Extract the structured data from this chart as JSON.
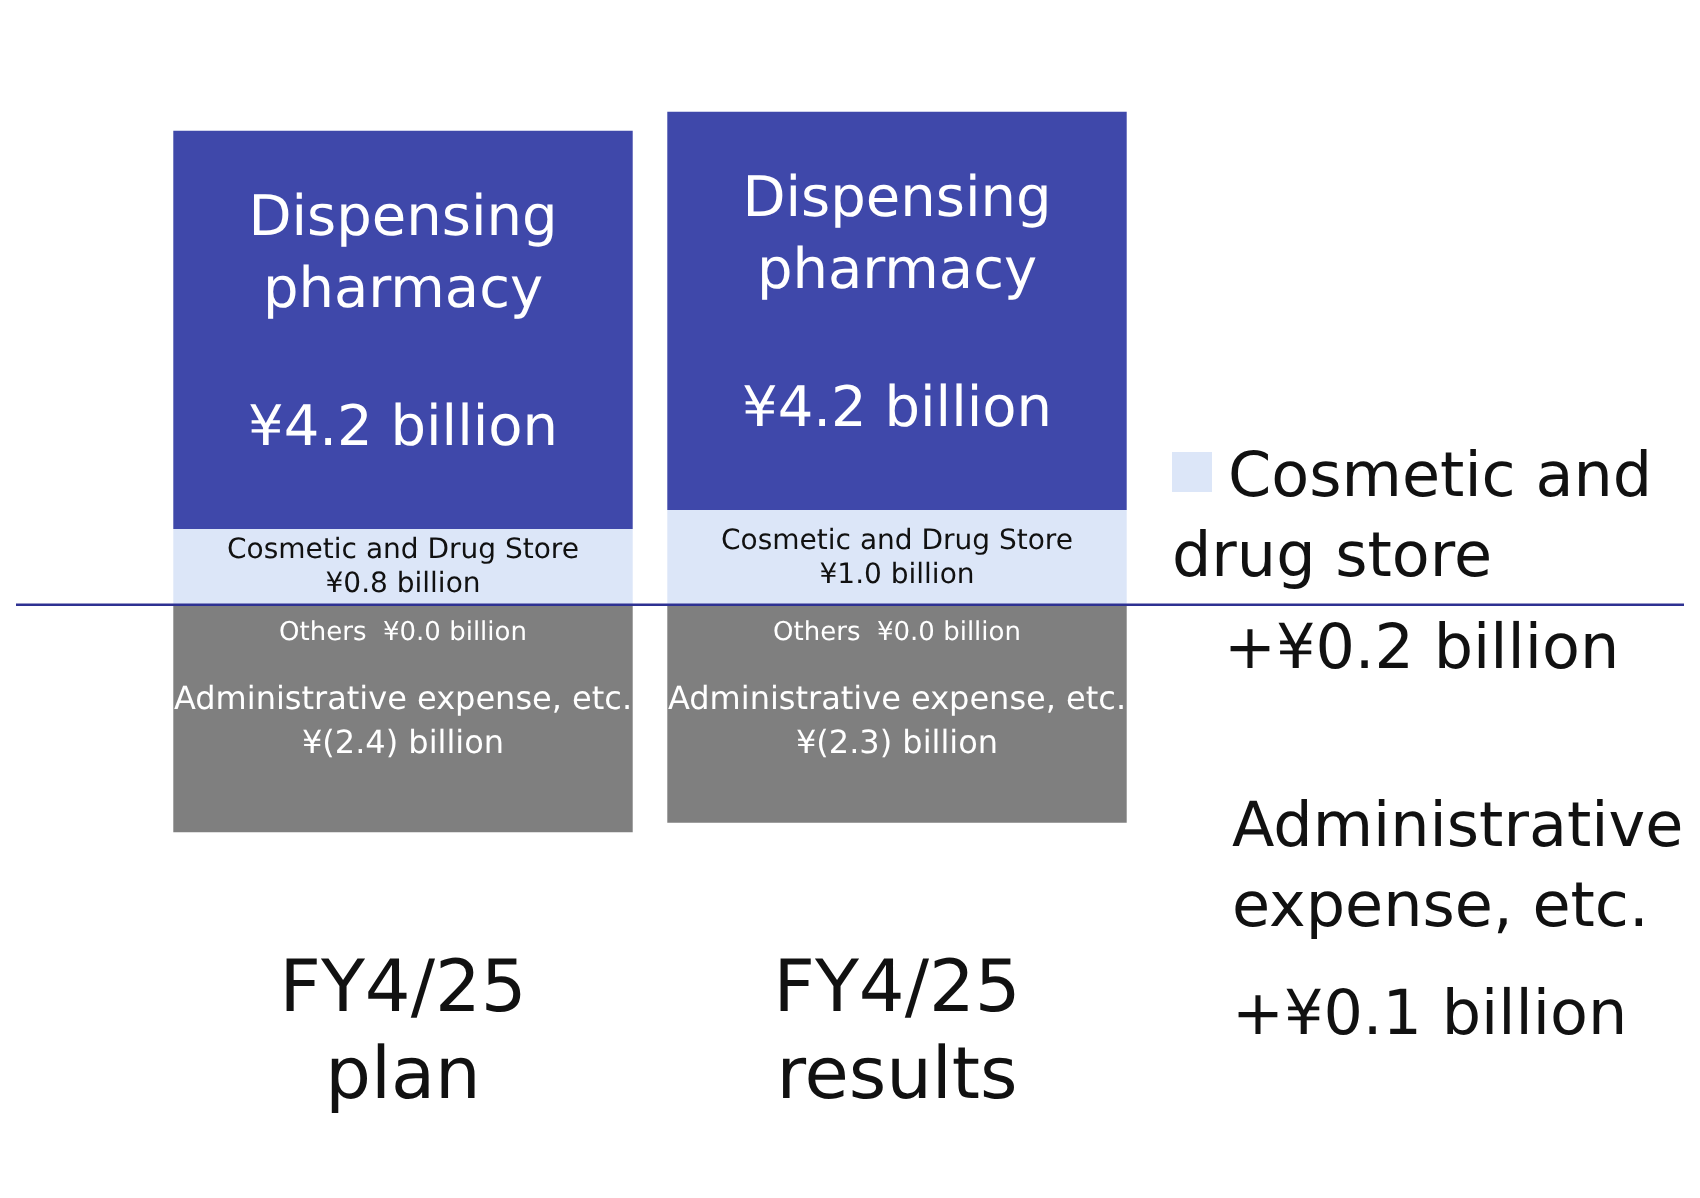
{
  "chart_data": {
    "type": "bar",
    "stacked": true,
    "categories": [
      "FY4/25 plan",
      "FY4/25 results"
    ],
    "series": [
      {
        "name": "Others",
        "color": "#7f7f7f",
        "values": [
          0.0,
          0.0
        ],
        "value_labels": [
          "¥0.0 billion",
          "¥0.0 billion"
        ]
      },
      {
        "name": "Cosmetic and Drug Store",
        "color": "#dce6f8",
        "values": [
          0.8,
          1.0
        ],
        "value_labels": [
          "¥0.8 billion",
          "¥1.0 billion"
        ]
      },
      {
        "name": "Dispensing pharmacy",
        "color": "#3f48aa",
        "values": [
          4.2,
          4.2
        ],
        "value_labels": [
          "¥4.2 billion",
          "¥4.2 billion"
        ]
      },
      {
        "name": "Administrative expense, etc.",
        "color": "#7f7f7f",
        "values": [
          -2.4,
          -2.3
        ],
        "value_labels": [
          "¥(2.4) billion",
          "¥(2.3) billion"
        ]
      }
    ],
    "ref_lines": [
      {
        "axis": "y",
        "value": 0,
        "color": "#2e3192"
      }
    ],
    "annotations": [
      "Cosmetic and drug store",
      "+¥0.2 billion",
      "Administrative expense, etc.",
      "+¥0.1 billion"
    ],
    "grid": false,
    "legend": false
  }
}
